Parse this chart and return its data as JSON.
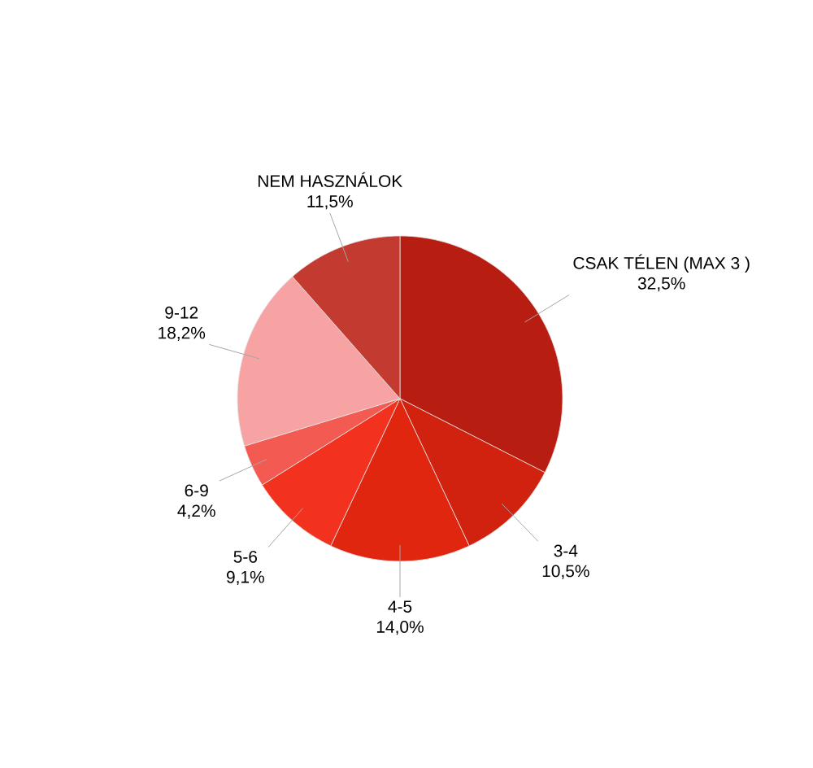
{
  "chart_data": {
    "type": "pie",
    "categories": [
      "CSAK TÉLEN (MAX 3 )",
      "3-4",
      "4-5",
      "5-6",
      "6-9",
      "9-12",
      "NEM HASZNÁLOK"
    ],
    "values": [
      32.5,
      10.5,
      14.0,
      9.1,
      4.2,
      18.2,
      11.5
    ],
    "value_labels": [
      "32,5%",
      "10,5%",
      "14,0%",
      "9,1%",
      "4,2%",
      "18,2%",
      "11,5%"
    ],
    "colors": [
      "#b81d12",
      "#d0220f",
      "#e0260f",
      "#f2321f",
      "#f25a52",
      "#f7a3a3",
      "#c23a30"
    ]
  }
}
